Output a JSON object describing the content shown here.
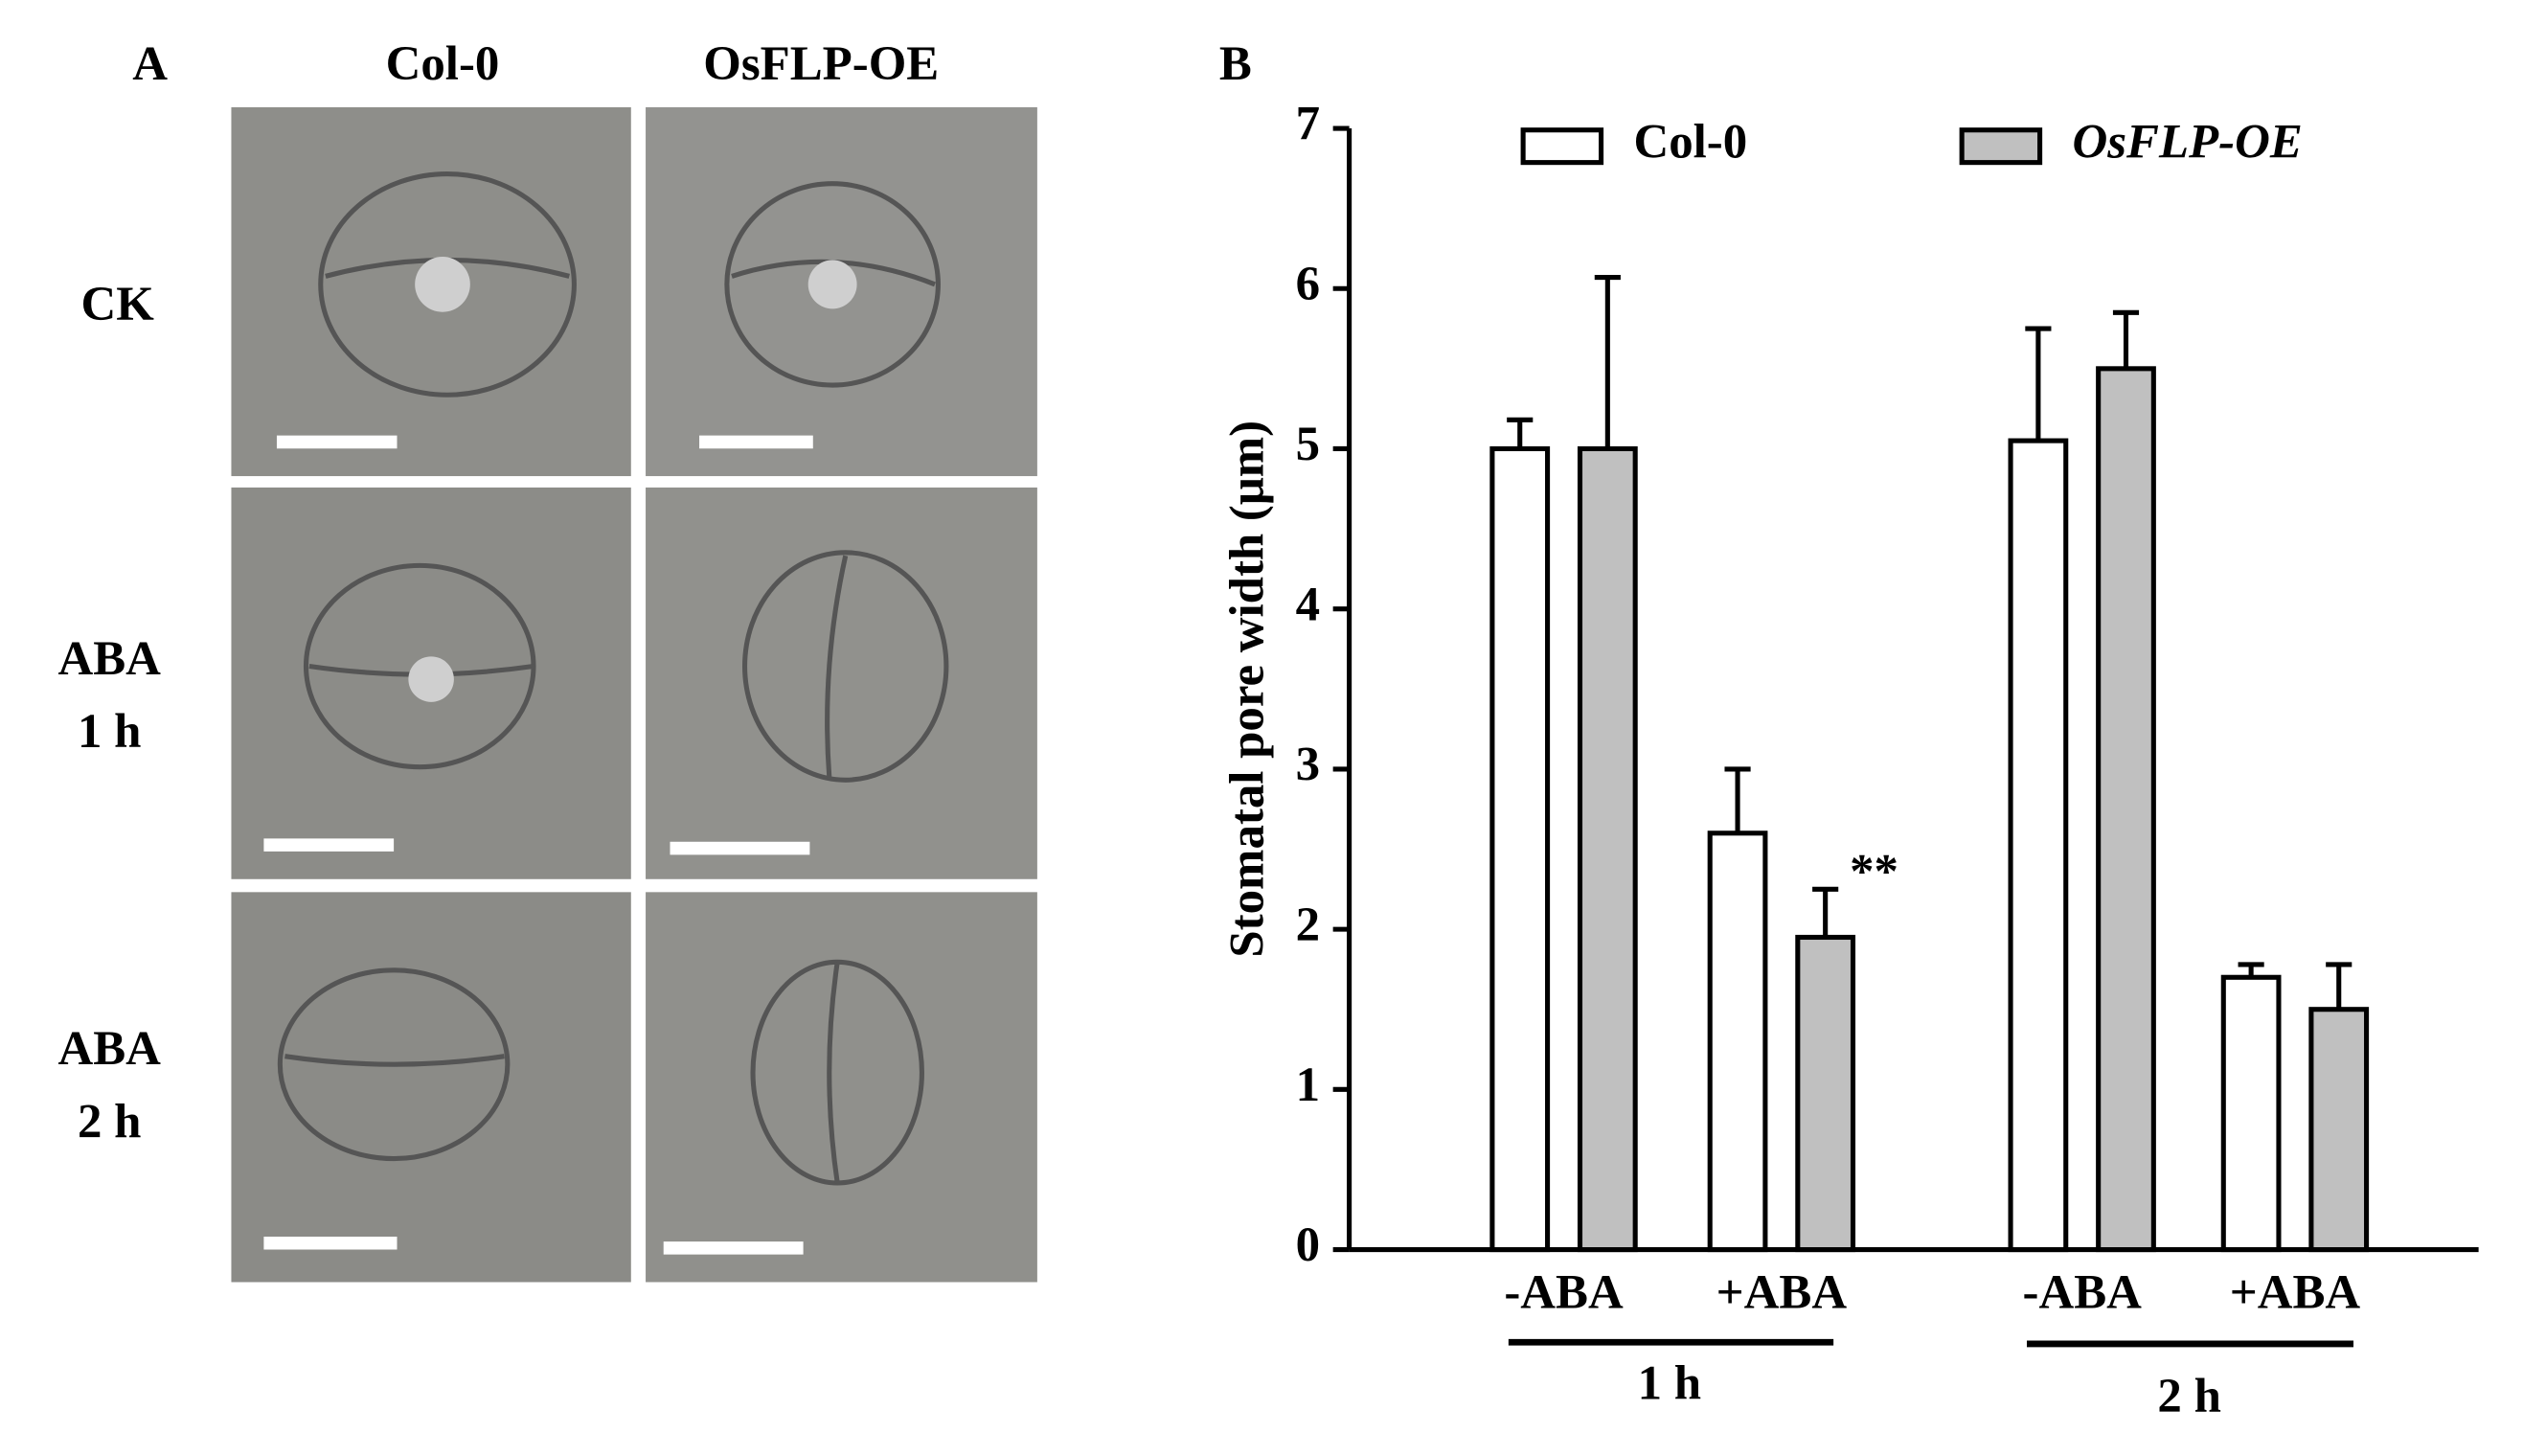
{
  "panel_a": {
    "label": "A",
    "columns": [
      "Col-0",
      "OsFLP-OE"
    ],
    "rows": [
      [
        "CK"
      ],
      [
        "ABA",
        "1 h"
      ],
      [
        "ABA",
        "2 h"
      ]
    ]
  },
  "chart_data": {
    "type": "bar",
    "panel_label": "B",
    "y_label": "Stomatal pore width (μm)",
    "categories": [
      "-ABA",
      "+ABA",
      "-ABA",
      "+ABA"
    ],
    "groups": [
      "1 h",
      "2 h"
    ],
    "series": [
      {
        "name": "Col-0",
        "color": "#ffffff",
        "values": [
          5.0,
          2.6,
          5.05,
          1.7
        ],
        "errors": [
          0.18,
          0.4,
          0.7,
          0.08
        ]
      },
      {
        "name": "OsFLP-OE",
        "color": "#c0c0c0",
        "values": [
          5.0,
          1.95,
          5.5,
          1.5
        ],
        "errors": [
          1.07,
          0.3,
          0.35,
          0.28
        ]
      }
    ],
    "annotations": [
      {
        "text": "**",
        "series": 1,
        "category": 1
      }
    ],
    "ylim": [
      0,
      7
    ],
    "yticks": [
      0,
      1,
      2,
      3,
      4,
      5,
      6,
      7
    ],
    "legend": "top"
  }
}
